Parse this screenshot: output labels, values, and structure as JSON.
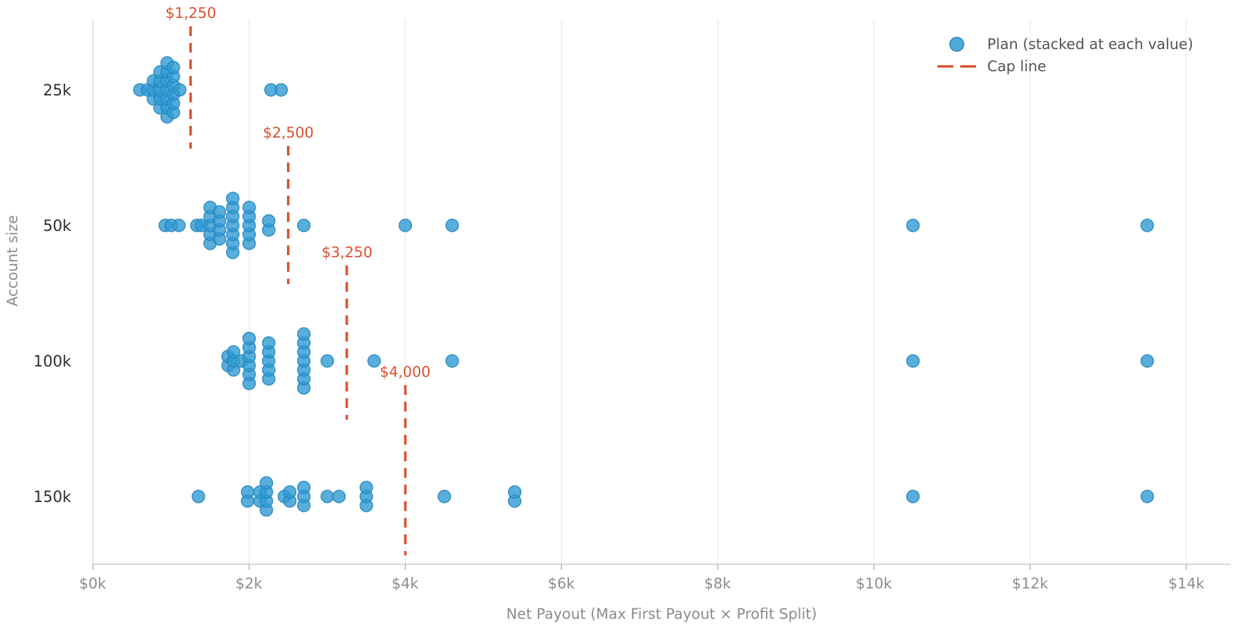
{
  "chart_data": {
    "type": "scatter",
    "subtype": "stacked-dot-strip-plot",
    "xlabel": "Net Payout (Max First Payout × Profit Split)",
    "ylabel": "Account size",
    "categories": [
      "25k",
      "50k",
      "100k",
      "150k"
    ],
    "x_ticks": [
      {
        "label": "$0k",
        "value": 0
      },
      {
        "label": "$2k",
        "value": 2000
      },
      {
        "label": "$4k",
        "value": 4000
      },
      {
        "label": "$6k",
        "value": 6000
      },
      {
        "label": "$8k",
        "value": 8000
      },
      {
        "label": "$10k",
        "value": 10000
      },
      {
        "label": "$12k",
        "value": 12000
      },
      {
        "label": "$14k",
        "value": 14000
      }
    ],
    "xlim": [
      0,
      14600
    ],
    "grid": "vertical-only",
    "legend_position": "top-right",
    "legend": [
      {
        "label": "Plan (stacked at each value)",
        "marker": "dot"
      },
      {
        "label": "Cap line",
        "marker": "dashed-line"
      }
    ],
    "colors": {
      "dot_fill": "#2f9ad2",
      "dot_edge": "#2386bd",
      "cap_line": "#d9512e",
      "gridline": "#e4e4e4",
      "axis_line": "#c9c9c9",
      "tick_mark": "#b3b3b3",
      "xtick_text": "#8c8c8c",
      "ytick_text": "#2e2e2e",
      "axis_title_text": "#8c8c8c",
      "legend_text": "#545454"
    },
    "series": [
      {
        "category": "25k",
        "cap_value": 1250,
        "cap_label": "$1,250",
        "stacks": [
          {
            "value": 600,
            "count": 1
          },
          {
            "value": 700,
            "count": 1
          },
          {
            "value": 775,
            "count": 3
          },
          {
            "value": 860,
            "count": 5
          },
          {
            "value": 950,
            "count": 7
          },
          {
            "value": 1030,
            "count": 6
          },
          {
            "value": 1110,
            "count": 1
          },
          {
            "value": 2280,
            "count": 1
          },
          {
            "value": 2410,
            "count": 1
          }
        ]
      },
      {
        "category": "50k",
        "cap_value": 2500,
        "cap_label": "$2,500",
        "stacks": [
          {
            "value": 925,
            "count": 1
          },
          {
            "value": 1000,
            "count": 1
          },
          {
            "value": 1100,
            "count": 1
          },
          {
            "value": 1330,
            "count": 1
          },
          {
            "value": 1390,
            "count": 1
          },
          {
            "value": 1500,
            "count": 5
          },
          {
            "value": 1620,
            "count": 4
          },
          {
            "value": 1790,
            "count": 7
          },
          {
            "value": 2000,
            "count": 5
          },
          {
            "value": 2250,
            "count": 2
          },
          {
            "value": 2700,
            "count": 1
          },
          {
            "value": 4000,
            "count": 1
          },
          {
            "value": 4600,
            "count": 1
          },
          {
            "value": 10500,
            "count": 1
          },
          {
            "value": 13500,
            "count": 1
          }
        ]
      },
      {
        "category": "100k",
        "cap_value": 3250,
        "cap_label": "$3,250",
        "stacks": [
          {
            "value": 1730,
            "count": 2
          },
          {
            "value": 1800,
            "count": 3
          },
          {
            "value": 1900,
            "count": 1
          },
          {
            "value": 2000,
            "count": 6
          },
          {
            "value": 2250,
            "count": 5
          },
          {
            "value": 2700,
            "count": 7
          },
          {
            "value": 3000,
            "count": 1
          },
          {
            "value": 3600,
            "count": 1
          },
          {
            "value": 4600,
            "count": 1
          },
          {
            "value": 10500,
            "count": 1
          },
          {
            "value": 13500,
            "count": 1
          }
        ]
      },
      {
        "category": "150k",
        "cap_value": 4000,
        "cap_label": "$4,000",
        "stacks": [
          {
            "value": 1350,
            "count": 1
          },
          {
            "value": 1980,
            "count": 2
          },
          {
            "value": 2140,
            "count": 2
          },
          {
            "value": 2220,
            "count": 4
          },
          {
            "value": 2450,
            "count": 1
          },
          {
            "value": 2520,
            "count": 2
          },
          {
            "value": 2700,
            "count": 3
          },
          {
            "value": 3000,
            "count": 1
          },
          {
            "value": 3150,
            "count": 1
          },
          {
            "value": 3500,
            "count": 3
          },
          {
            "value": 4500,
            "count": 1
          },
          {
            "value": 5400,
            "count": 2
          },
          {
            "value": 10500,
            "count": 1
          },
          {
            "value": 13500,
            "count": 1
          }
        ]
      }
    ]
  }
}
